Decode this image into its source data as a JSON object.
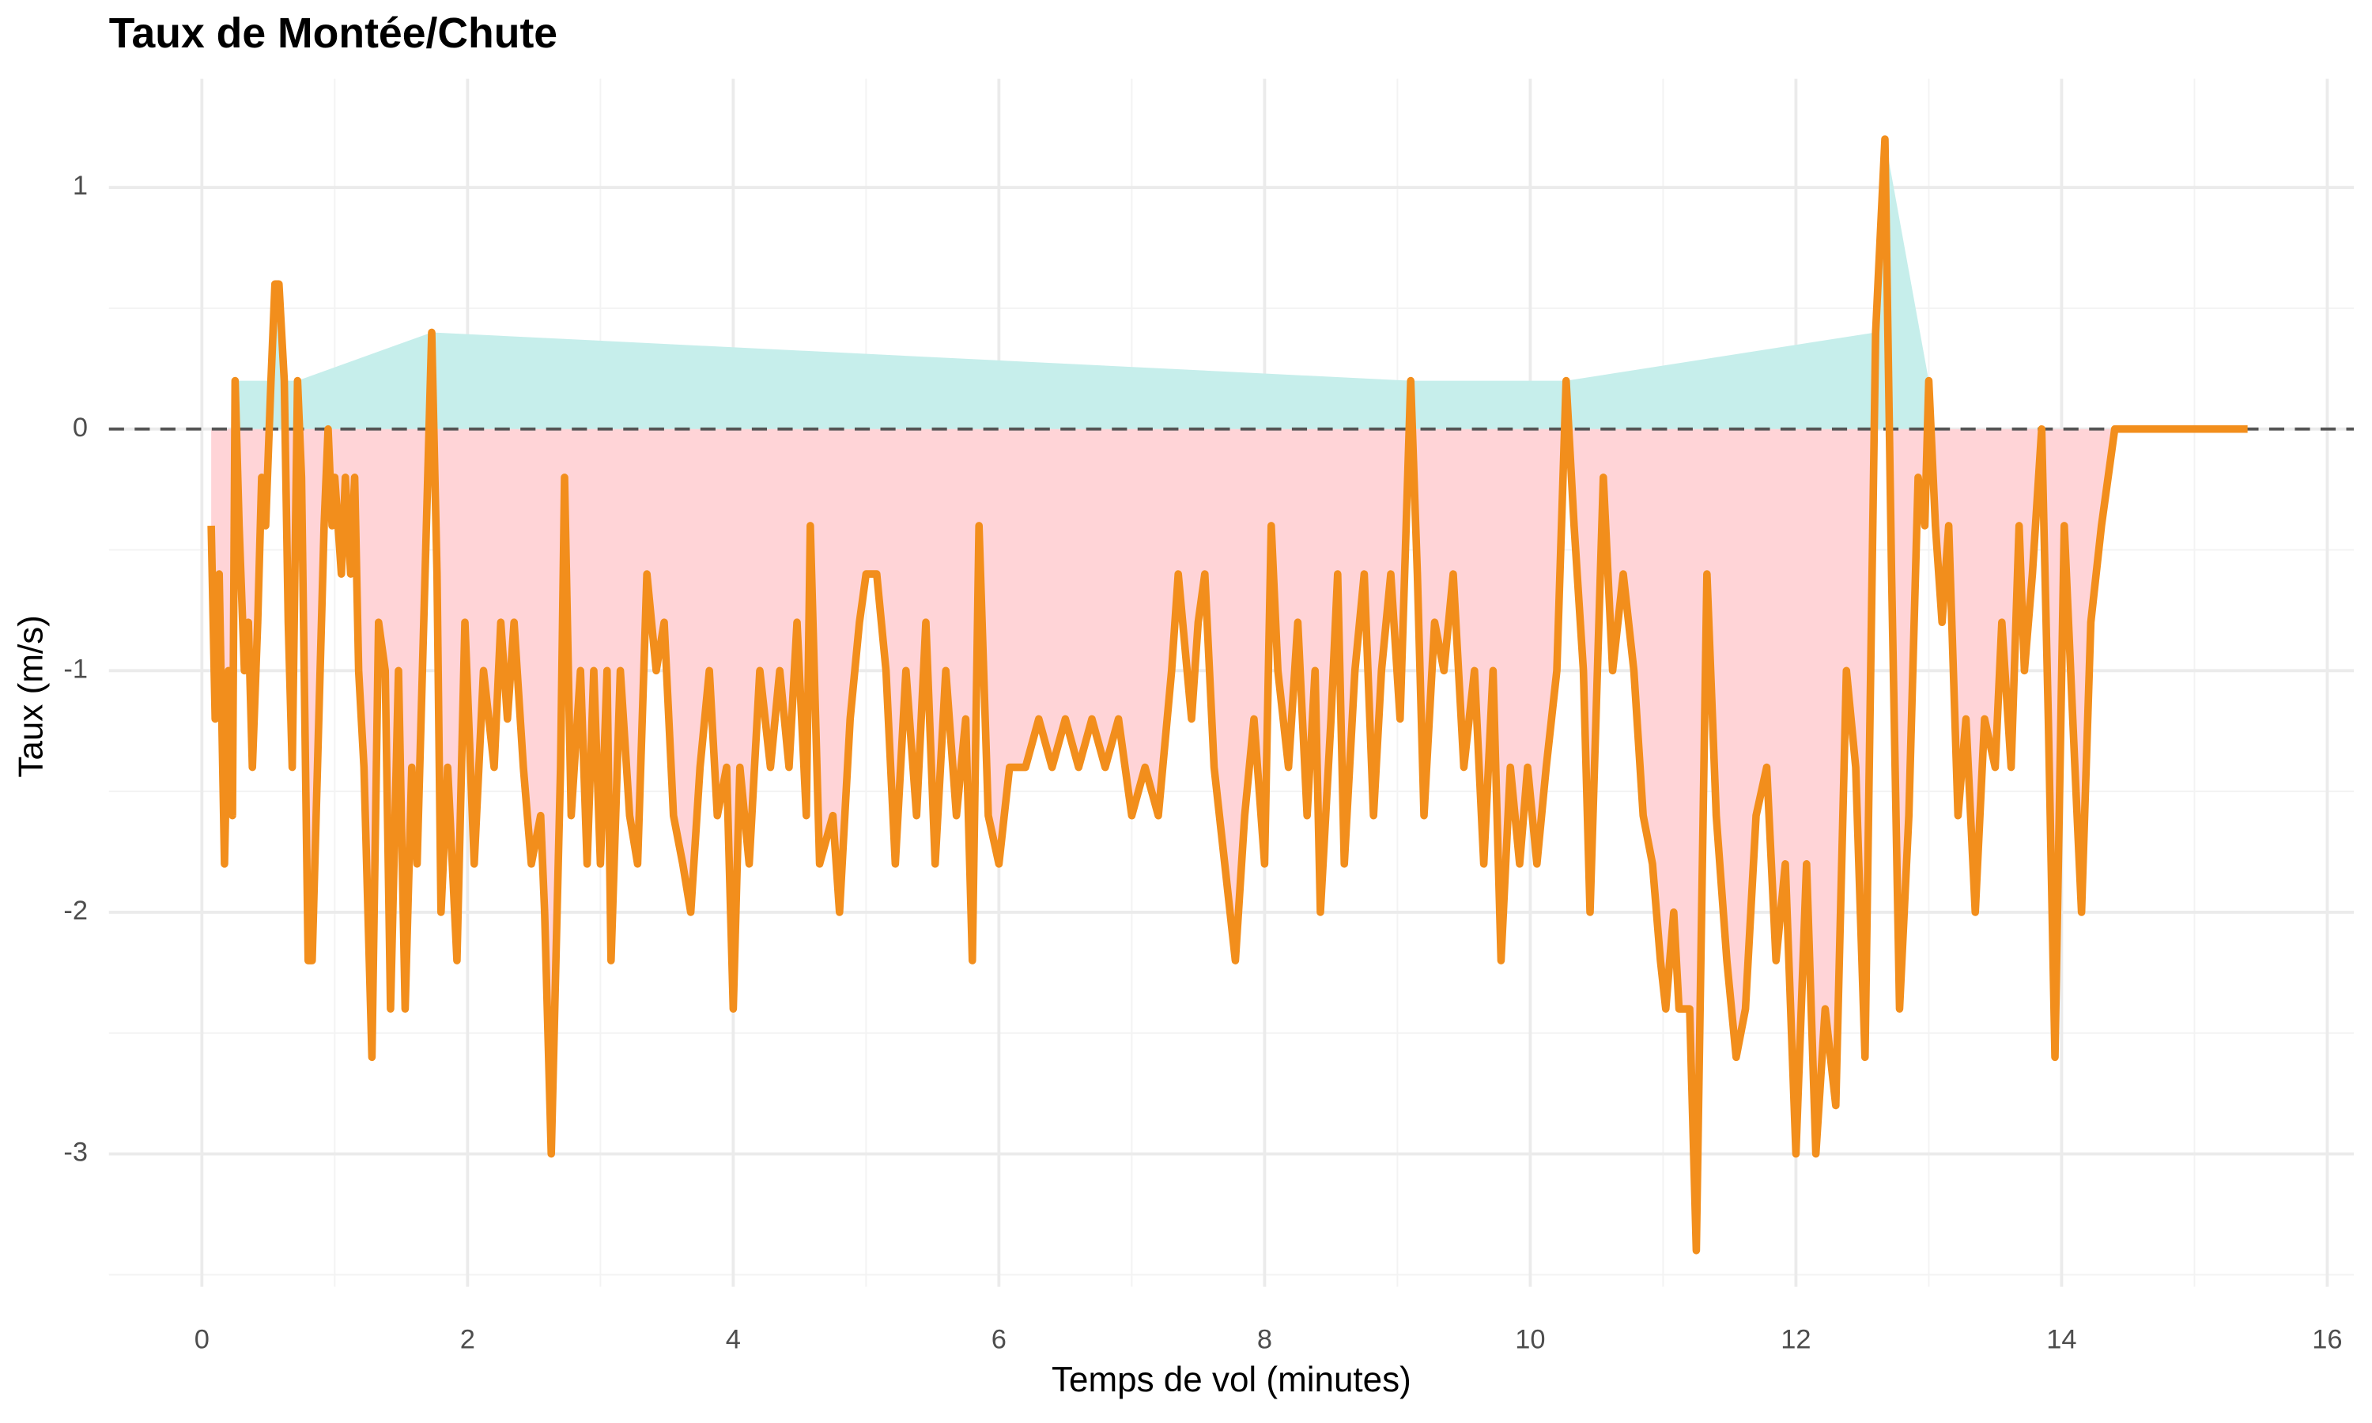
{
  "chart_data": {
    "type": "line",
    "title": "Taux de Montée/Chute",
    "x_label": "Temps de vol (minutes)",
    "y_label": "Taux (m/s)",
    "xlim": [
      -0.7,
      16.2
    ],
    "ylim": [
      -3.55,
      1.45
    ],
    "xticks": [
      0,
      2,
      4,
      6,
      8,
      10,
      12,
      14,
      16
    ],
    "yticks": [
      -3,
      -2,
      -1,
      0,
      1
    ],
    "grid": true,
    "hline": 0,
    "positive_fill": "#c6eeeb",
    "negative_fill": "#ffd4d7",
    "x": [
      0.07,
      0.1,
      0.13,
      0.17,
      0.2,
      0.23,
      0.25,
      0.28,
      0.32,
      0.35,
      0.38,
      0.42,
      0.45,
      0.48,
      0.52,
      0.55,
      0.58,
      0.62,
      0.65,
      0.68,
      0.72,
      0.75,
      0.8,
      0.83,
      0.88,
      0.92,
      0.95,
      0.98,
      1.0,
      1.05,
      1.08,
      1.12,
      1.15,
      1.18,
      1.22,
      1.28,
      1.33,
      1.38,
      1.42,
      1.48,
      1.53,
      1.58,
      1.62,
      1.68,
      1.73,
      1.77,
      1.8,
      1.85,
      1.92,
      1.98,
      2.05,
      2.12,
      2.2,
      2.25,
      2.3,
      2.35,
      2.42,
      2.48,
      2.55,
      2.58,
      2.63,
      2.7,
      2.73,
      2.78,
      2.85,
      2.9,
      2.95,
      3.0,
      3.05,
      3.08,
      3.15,
      3.22,
      3.28,
      3.35,
      3.42,
      3.48,
      3.55,
      3.62,
      3.68,
      3.75,
      3.82,
      3.88,
      3.95,
      4.0,
      4.05,
      4.12,
      4.2,
      4.28,
      4.35,
      4.42,
      4.48,
      4.55,
      4.58,
      4.65,
      4.75,
      4.8,
      4.88,
      4.95,
      5.0,
      5.08,
      5.15,
      5.22,
      5.3,
      5.38,
      5.45,
      5.52,
      5.6,
      5.68,
      5.75,
      5.8,
      5.85,
      5.92,
      6.0,
      6.08,
      6.2,
      6.3,
      6.4,
      6.5,
      6.6,
      6.7,
      6.8,
      6.9,
      7.0,
      7.1,
      7.2,
      7.3,
      7.35,
      7.45,
      7.5,
      7.55,
      7.62,
      7.7,
      7.78,
      7.85,
      7.92,
      8.0,
      8.05,
      8.1,
      8.18,
      8.25,
      8.32,
      8.38,
      8.42,
      8.5,
      8.55,
      8.6,
      8.68,
      8.75,
      8.82,
      8.88,
      8.95,
      9.02,
      9.1,
      9.15,
      9.2,
      9.28,
      9.35,
      9.42,
      9.5,
      9.58,
      9.65,
      9.72,
      9.78,
      9.85,
      9.92,
      9.98,
      10.05,
      10.12,
      10.2,
      10.27,
      10.33,
      10.4,
      10.45,
      10.55,
      10.62,
      10.7,
      10.78,
      10.85,
      10.92,
      10.98,
      11.02,
      11.08,
      11.12,
      11.2,
      11.25,
      11.33,
      11.4,
      11.48,
      11.55,
      11.62,
      11.7,
      11.78,
      11.85,
      11.92,
      12.0,
      12.08,
      12.15,
      12.22,
      12.3,
      12.38,
      12.45,
      12.52,
      12.6,
      12.67,
      12.72,
      12.78,
      12.85,
      12.92,
      12.97,
      13.0,
      13.05,
      13.1,
      13.15,
      13.22,
      13.28,
      13.35,
      13.42,
      13.5,
      13.55,
      13.62,
      13.68,
      13.72,
      13.78,
      13.85,
      13.9,
      13.95,
      14.02,
      14.1,
      14.15,
      14.22,
      14.3,
      14.4,
      14.6,
      15.0,
      15.4
    ],
    "series": [
      {
        "name": "Taux",
        "color": "#f28e1c",
        "values": [
          -0.4,
          -1.2,
          -0.6,
          -1.8,
          -1.0,
          -1.6,
          0.2,
          -0.4,
          -1.0,
          -0.8,
          -1.4,
          -0.8,
          -0.2,
          -0.4,
          0.2,
          0.6,
          0.6,
          0.2,
          -0.8,
          -1.4,
          0.2,
          -0.2,
          -2.2,
          -2.2,
          -1.2,
          -0.4,
          0.0,
          -0.4,
          -0.2,
          -0.6,
          -0.2,
          -0.6,
          -0.2,
          -1.0,
          -1.4,
          -2.6,
          -0.8,
          -1.0,
          -2.4,
          -1.0,
          -2.4,
          -1.4,
          -1.8,
          -0.6,
          0.4,
          -0.6,
          -2.0,
          -1.4,
          -2.2,
          -0.8,
          -1.8,
          -1.0,
          -1.4,
          -0.8,
          -1.2,
          -0.8,
          -1.4,
          -1.8,
          -1.6,
          -2.0,
          -3.0,
          -1.4,
          -0.2,
          -1.6,
          -1.0,
          -1.8,
          -1.0,
          -1.8,
          -1.0,
          -2.2,
          -1.0,
          -1.6,
          -1.8,
          -0.6,
          -1.0,
          -0.8,
          -1.6,
          -1.8,
          -2.0,
          -1.4,
          -1.0,
          -1.6,
          -1.4,
          -2.4,
          -1.4,
          -1.8,
          -1.0,
          -1.4,
          -1.0,
          -1.4,
          -0.8,
          -1.6,
          -0.4,
          -1.8,
          -1.6,
          -2.0,
          -1.2,
          -0.8,
          -0.6,
          -0.6,
          -1.0,
          -1.8,
          -1.0,
          -1.6,
          -0.8,
          -1.8,
          -1.0,
          -1.6,
          -1.2,
          -2.2,
          -0.4,
          -1.6,
          -1.8,
          -1.4,
          -1.4,
          -1.2,
          -1.4,
          -1.2,
          -1.4,
          -1.2,
          -1.4,
          -1.2,
          -1.6,
          -1.4,
          -1.6,
          -1.0,
          -0.6,
          -1.2,
          -0.8,
          -0.6,
          -1.4,
          -1.8,
          -2.2,
          -1.6,
          -1.2,
          -1.8,
          -0.4,
          -1.0,
          -1.4,
          -0.8,
          -1.6,
          -1.0,
          -2.0,
          -1.2,
          -0.6,
          -1.8,
          -1.0,
          -0.6,
          -1.6,
          -1.0,
          -0.6,
          -1.2,
          0.2,
          -0.6,
          -1.6,
          -0.8,
          -1.0,
          -0.6,
          -1.4,
          -1.0,
          -1.8,
          -1.0,
          -2.2,
          -1.4,
          -1.8,
          -1.4,
          -1.8,
          -1.4,
          -1.0,
          0.2,
          -0.4,
          -1.0,
          -2.0,
          -0.2,
          -1.0,
          -0.6,
          -1.0,
          -1.6,
          -1.8,
          -2.2,
          -2.4,
          -2.0,
          -2.4,
          -2.4,
          -3.4,
          -0.6,
          -1.6,
          -2.2,
          -2.6,
          -2.4,
          -1.6,
          -1.4,
          -2.2,
          -1.8,
          -3.0,
          -1.8,
          -3.0,
          -2.4,
          -2.8,
          -1.0,
          -1.4,
          -2.6,
          0.4,
          1.2,
          -0.6,
          -2.4,
          -1.6,
          -0.2,
          -0.4,
          0.2,
          -0.4,
          -0.8,
          -0.4,
          -1.6,
          -1.2,
          -2.0,
          -1.2,
          -1.4,
          -0.8,
          -1.4,
          -0.4,
          -1.0,
          -0.6,
          0.0,
          -1.2,
          -2.6,
          -0.4,
          -1.4,
          -2.0,
          -0.8,
          -0.4,
          0.0,
          0.0,
          0.0,
          0.0
        ]
      }
    ]
  }
}
